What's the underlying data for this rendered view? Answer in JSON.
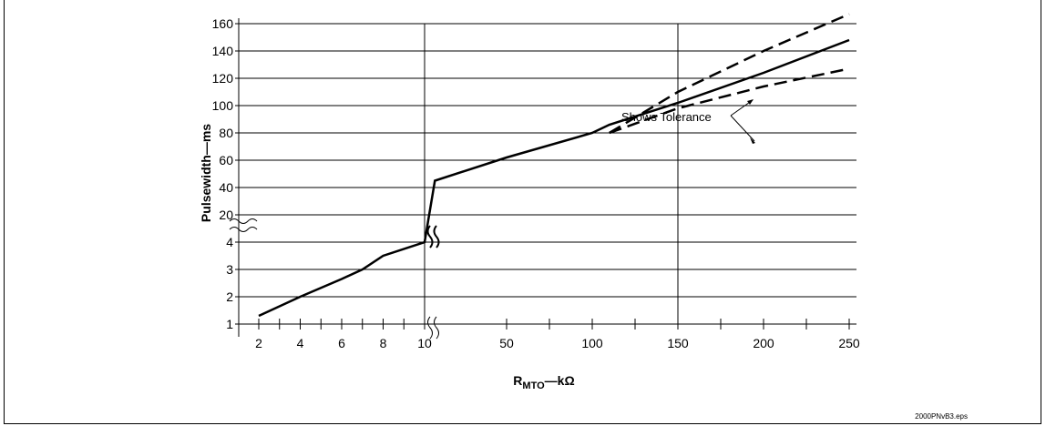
{
  "chart_data": {
    "type": "line",
    "xlabel_main": "R",
    "xlabel_sub": "MTO",
    "xlabel_rest": "—kΩ",
    "ylabel": "Pulsewidth—ms",
    "x_ticks_low": [
      "2",
      "4",
      "6",
      "8",
      "10"
    ],
    "x_ticks_high": [
      "50",
      "100",
      "150",
      "200",
      "250"
    ],
    "y_ticks_low": [
      "1",
      "2",
      "3",
      "4"
    ],
    "y_ticks_high": [
      "20",
      "40",
      "60",
      "80",
      "100",
      "120",
      "140",
      "160"
    ],
    "x_vertical_gridlines": [
      10,
      150
    ],
    "axis_break": "both axes broken between 10 kΩ / 4 ms (linear 1–4 ms over 2–10 kΩ) and the upper range (20–160 ms over 10–250 kΩ)",
    "series": [
      {
        "style": "solid",
        "points": [
          [
            2,
            1.3
          ],
          [
            4,
            2.0
          ],
          [
            6,
            2.65
          ],
          [
            7,
            3.0
          ],
          [
            8,
            3.5
          ],
          [
            10,
            4.0
          ],
          [
            15,
            45
          ],
          [
            50,
            62
          ],
          [
            100,
            80
          ],
          [
            110,
            86
          ],
          [
            150,
            102
          ],
          [
            200,
            124
          ],
          [
            250,
            148
          ]
        ]
      },
      {
        "style": "dashed",
        "points": [
          [
            110,
            80
          ],
          [
            150,
            110
          ],
          [
            200,
            140
          ],
          [
            250,
            167
          ]
        ]
      },
      {
        "style": "dashed",
        "points": [
          [
            110,
            80
          ],
          [
            150,
            98
          ],
          [
            200,
            114
          ],
          [
            250,
            127
          ]
        ]
      }
    ],
    "annotation": "Shows Tolerance",
    "footer": "2000PNvB3.eps",
    "grid": true
  }
}
